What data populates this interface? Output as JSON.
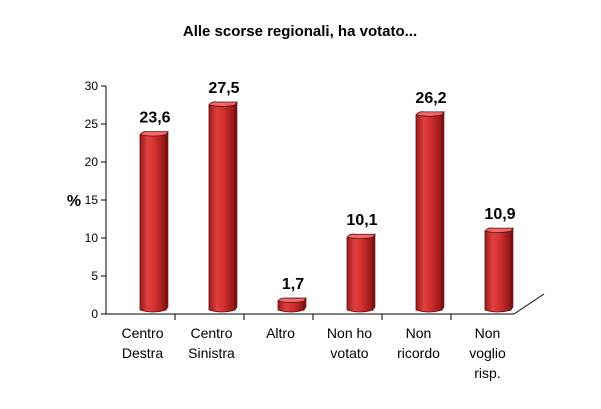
{
  "chart_data": {
    "type": "bar",
    "title": "Alle scorse regionali, ha votato...",
    "ylabel": "%",
    "xlabel": "",
    "ylim": [
      0,
      30
    ],
    "yticks": [
      0,
      5,
      10,
      15,
      20,
      25,
      30
    ],
    "grid": false,
    "categories": [
      [
        "Centro",
        "Destra"
      ],
      [
        "Centro",
        "Sinistra"
      ],
      [
        "Altro"
      ],
      [
        "Non ho",
        "votato"
      ],
      [
        "Non",
        "ricordo"
      ],
      [
        "Non",
        "voglio",
        "risp."
      ]
    ],
    "values": [
      23.6,
      27.5,
      1.7,
      10.1,
      26.2,
      10.9
    ],
    "value_labels": [
      "23,6",
      "27,5",
      "1,7",
      "10,1",
      "26,2",
      "10,9"
    ],
    "bar_color": "#d92b2b",
    "bar_dark": "#8a1414",
    "bar_light": "#ee6a6a"
  }
}
